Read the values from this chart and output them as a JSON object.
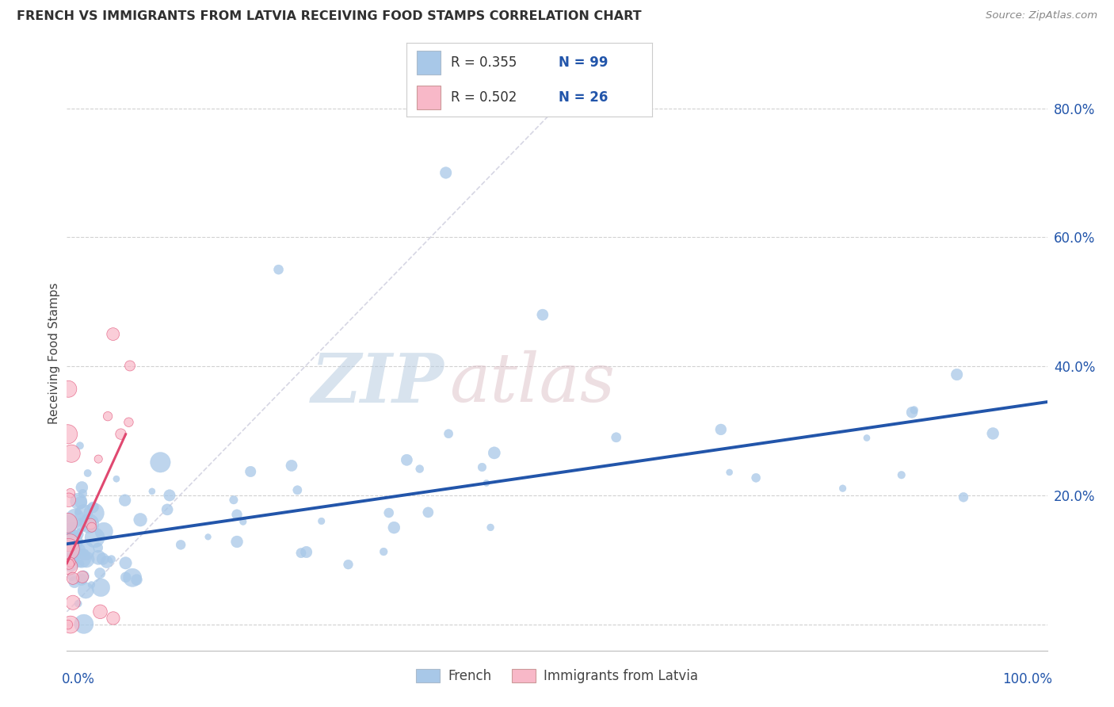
{
  "title": "FRENCH VS IMMIGRANTS FROM LATVIA RECEIVING FOOD STAMPS CORRELATION CHART",
  "source": "Source: ZipAtlas.com",
  "ylabel": "Receiving Food Stamps",
  "x_range": [
    0.0,
    1.0
  ],
  "y_range": [
    -0.04,
    0.88
  ],
  "french_color": "#a8c8e8",
  "french_line_color": "#2255aa",
  "french_trend_color": "#c8d8ee",
  "latvia_color": "#f8b8c8",
  "latvia_line_color": "#e04870",
  "background_color": "#ffffff",
  "grid_color": "#cccccc",
  "title_color": "#303030",
  "source_color": "#888888",
  "watermark_zip_color": "#c0d0e8",
  "watermark_atlas_color": "#d8c0c8",
  "legend_R_color": "#2255aa",
  "legend_N_color": "#2255aa",
  "ytick_color": "#2255aa",
  "french_line_x": [
    0.0,
    1.0
  ],
  "french_line_y": [
    0.125,
    0.345
  ],
  "latvia_line_x": [
    0.0,
    0.06
  ],
  "latvia_line_y": [
    0.095,
    0.295
  ],
  "french_trend_x": [
    0.18,
    0.52
  ],
  "french_trend_y": [
    0.0,
    0.85
  ]
}
